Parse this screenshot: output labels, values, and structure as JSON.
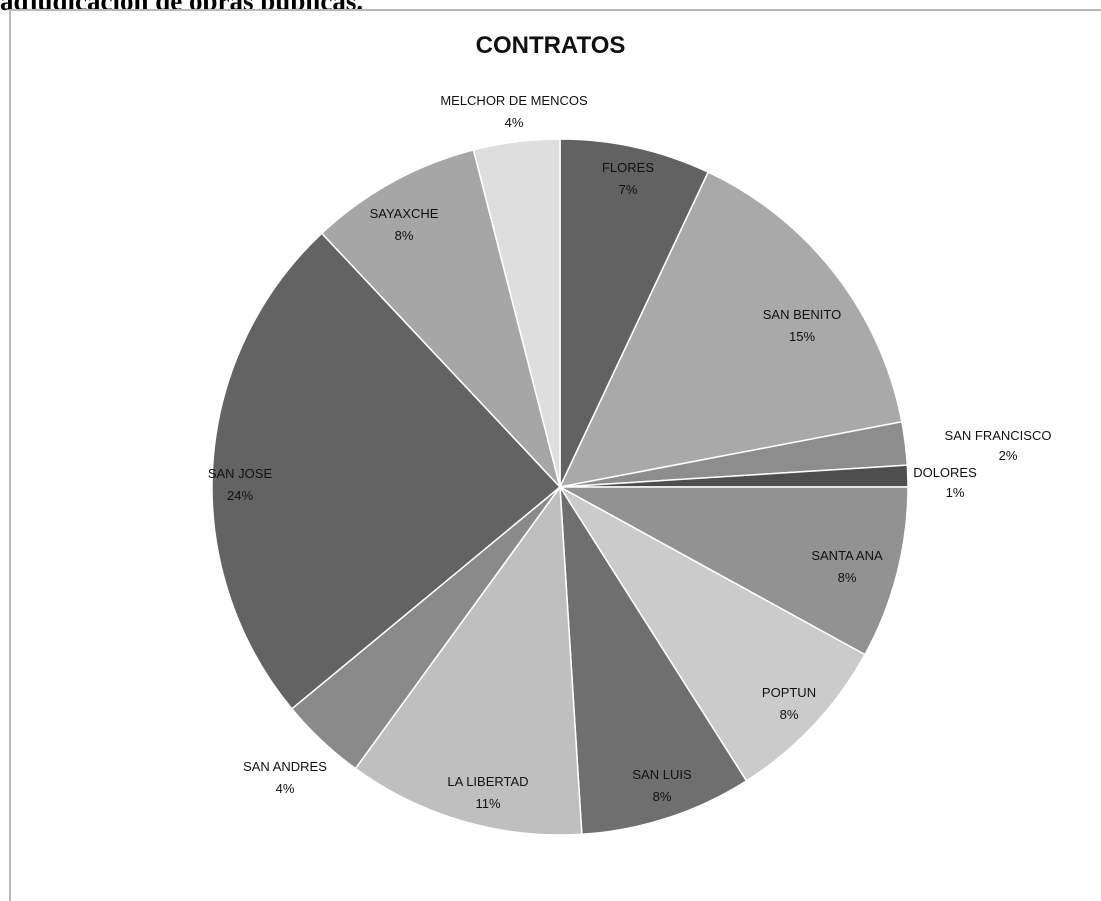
{
  "page": {
    "heading": "adjudicación de obras públicas."
  },
  "chart_data": {
    "type": "pie",
    "title": "CONTRATOS",
    "start": "12 o'clock",
    "direction": "clockwise",
    "slices": [
      {
        "label": "FLORES",
        "value": 7,
        "pct": "7%",
        "color": "#626262"
      },
      {
        "label": "SAN BENITO",
        "value": 15,
        "pct": "15%",
        "color": "#a9a9a9"
      },
      {
        "label": "SAN FRANCISCO",
        "value": 2,
        "pct": "2%",
        "color": "#8d8d8d"
      },
      {
        "label": "DOLORES",
        "value": 1,
        "pct": "1%",
        "color": "#4e4e4e"
      },
      {
        "label": "SANTA ANA",
        "value": 8,
        "pct": "8%",
        "color": "#929292"
      },
      {
        "label": "POPTUN",
        "value": 8,
        "pct": "8%",
        "color": "#cbcbcb"
      },
      {
        "label": "SAN LUIS",
        "value": 8,
        "pct": "8%",
        "color": "#6f6f6f"
      },
      {
        "label": "LA LIBERTAD",
        "value": 11,
        "pct": "11%",
        "color": "#bfbfbf"
      },
      {
        "label": "SAN ANDRES",
        "value": 4,
        "pct": "4%",
        "color": "#8a8a8a"
      },
      {
        "label": "SAN JOSE",
        "value": 24,
        "pct": "24%",
        "color": "#636363"
      },
      {
        "label": "SAYAXCHE",
        "value": 8,
        "pct": "8%",
        "color": "#a6a6a6"
      },
      {
        "label": "MELCHOR DE MENCOS",
        "value": 4,
        "pct": "4%",
        "color": "#dedede"
      }
    ]
  }
}
